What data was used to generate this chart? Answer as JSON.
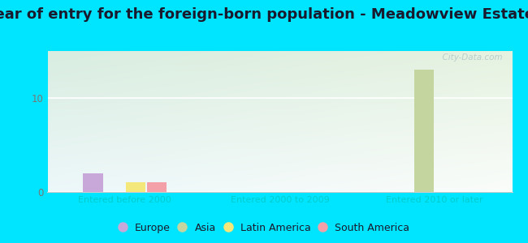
{
  "title": "Year of entry for the foreign-born population - Meadowview Estates",
  "background_color": "#00e5ff",
  "categories": [
    "Entered before 2000",
    "Entered 2000 to 2009",
    "Entered 2010 or later"
  ],
  "series": {
    "Europe": [
      2,
      0,
      0
    ],
    "Asia": [
      0,
      0,
      13
    ],
    "Latin America": [
      1,
      0,
      0
    ],
    "South America": [
      1,
      0,
      0
    ]
  },
  "colors": {
    "Europe": "#c8a8d8",
    "Asia": "#c5d5a0",
    "Latin America": "#f5e87a",
    "South America": "#f4a0a8"
  },
  "ylim": [
    0,
    15
  ],
  "yticks": [
    0,
    10
  ],
  "watermark": "  City-Data.com",
  "legend_fontsize": 9,
  "title_fontsize": 13,
  "xticklabel_color": "#00cccc",
  "ytick_color": "#777777",
  "title_color": "#1a1a2e"
}
